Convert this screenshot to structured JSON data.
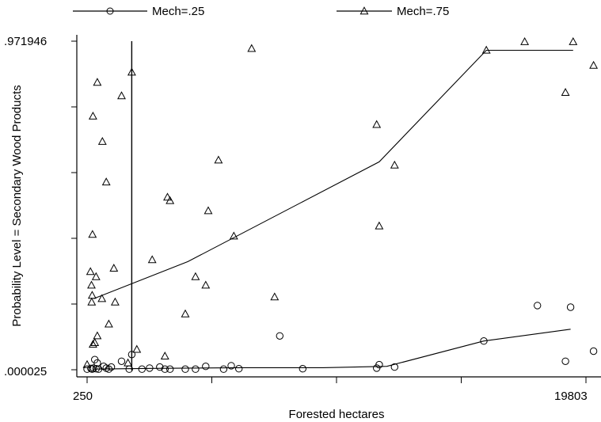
{
  "chart_data": {
    "type": "scatter",
    "title": "",
    "xlabel": "Forested hectares",
    "ylabel": "Probability Level = Secondary Wood Products",
    "xlim": [
      250,
      19803
    ],
    "ylim": [
      2.5e-05,
      0.971946
    ],
    "x_tick_labels": [
      "250",
      "19803"
    ],
    "y_tick_labels": [
      ".971946",
      ".000025"
    ],
    "x_minor_ticks": [
      5138,
      10026,
      14915
    ],
    "y_minor_ticks": [
      0.19441,
      0.38879,
      0.58317,
      0.77756
    ],
    "legend_position": "top",
    "reference_line_x": 2000,
    "series": [
      {
        "name": "Mech=.25",
        "marker": "circle",
        "points": [
          [
            250,
            0.002
          ],
          [
            400,
            0.004
          ],
          [
            450,
            0.002
          ],
          [
            500,
            0.005
          ],
          [
            550,
            0.03
          ],
          [
            600,
            0.003
          ],
          [
            650,
            0.02
          ],
          [
            700,
            0.002
          ],
          [
            900,
            0.01
          ],
          [
            1000,
            0.005
          ],
          [
            1100,
            0.002
          ],
          [
            1200,
            0.008
          ],
          [
            1600,
            0.025
          ],
          [
            1900,
            0.002
          ],
          [
            2000,
            0.045
          ],
          [
            2400,
            0.002
          ],
          [
            2700,
            0.005
          ],
          [
            3100,
            0.008
          ],
          [
            3300,
            0.002
          ],
          [
            3500,
            0.002
          ],
          [
            4100,
            0.002
          ],
          [
            4500,
            0.002
          ],
          [
            4900,
            0.01
          ],
          [
            5600,
            0.002
          ],
          [
            5900,
            0.012
          ],
          [
            6200,
            0.003
          ],
          [
            7800,
            0.1
          ],
          [
            8700,
            0.003
          ],
          [
            11600,
            0.005
          ],
          [
            11700,
            0.015
          ],
          [
            12300,
            0.008
          ],
          [
            15800,
            0.085
          ],
          [
            17900,
            0.19
          ],
          [
            19000,
            0.025
          ],
          [
            19200,
            0.185
          ],
          [
            20100,
            0.055
          ]
        ],
        "fit_line": [
          [
            500,
            0.002
          ],
          [
            2800,
            0.004
          ],
          [
            6300,
            0.006
          ],
          [
            9500,
            0.006
          ],
          [
            12000,
            0.01
          ],
          [
            15800,
            0.085
          ],
          [
            19200,
            0.12
          ]
        ]
      },
      {
        "name": "Mech=.75",
        "marker": "triangle",
        "points": [
          [
            250,
            0.015
          ],
          [
            380,
            0.29
          ],
          [
            420,
            0.25
          ],
          [
            430,
            0.2
          ],
          [
            450,
            0.22
          ],
          [
            460,
            0.4
          ],
          [
            480,
            0.75
          ],
          [
            480,
            0.075
          ],
          [
            550,
            0.08
          ],
          [
            600,
            0.275
          ],
          [
            650,
            0.1
          ],
          [
            650,
            0.85
          ],
          [
            830,
            0.21
          ],
          [
            850,
            0.675
          ],
          [
            1000,
            0.555
          ],
          [
            1100,
            0.135
          ],
          [
            1300,
            0.3
          ],
          [
            1350,
            0.2
          ],
          [
            1600,
            0.81
          ],
          [
            1850,
            0.02
          ],
          [
            2000,
            0.88
          ],
          [
            2200,
            0.06
          ],
          [
            2800,
            0.325
          ],
          [
            3300,
            0.04
          ],
          [
            3400,
            0.51
          ],
          [
            3500,
            0.5
          ],
          [
            4100,
            0.165
          ],
          [
            4500,
            0.275
          ],
          [
            4900,
            0.25
          ],
          [
            5000,
            0.47
          ],
          [
            5400,
            0.62
          ],
          [
            6000,
            0.395
          ],
          [
            6700,
            0.95
          ],
          [
            7600,
            0.215
          ],
          [
            11600,
            0.725
          ],
          [
            11700,
            0.425
          ],
          [
            12300,
            0.605
          ],
          [
            15900,
            0.945
          ],
          [
            17400,
            0.97
          ],
          [
            19000,
            0.82
          ],
          [
            19300,
            0.97
          ],
          [
            20100,
            0.9
          ]
        ],
        "fit_line": [
          [
            500,
            0.21
          ],
          [
            4200,
            0.32
          ],
          [
            11700,
            0.615
          ],
          [
            15900,
            0.945
          ],
          [
            19300,
            0.945
          ]
        ]
      }
    ]
  }
}
